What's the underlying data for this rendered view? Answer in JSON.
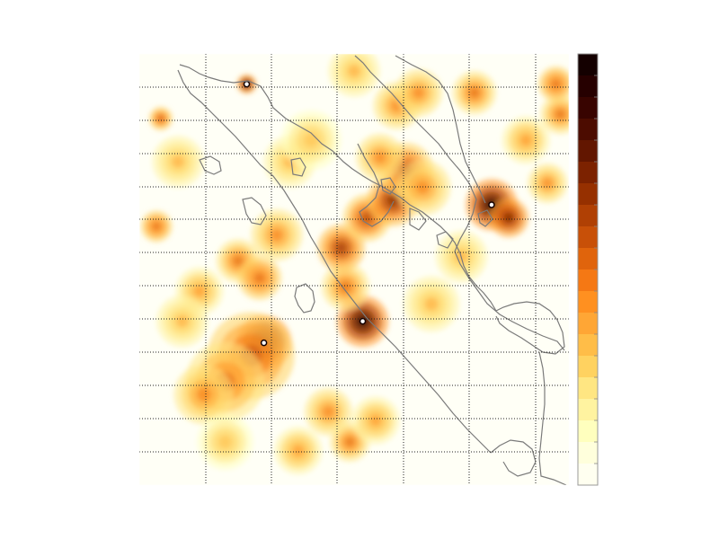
{
  "map": {
    "type": "heatmap",
    "grid": true,
    "grid_style": "dotted",
    "legend_placement": "right",
    "colorbar": {
      "colors": [
        "#fffff0",
        "#ffffdc",
        "#ffffbe",
        "#fff3a0",
        "#ffe682",
        "#ffd260",
        "#ffbd48",
        "#ffa635",
        "#ff9020",
        "#f57814",
        "#e0640c",
        "#c85008",
        "#b04004",
        "#963000",
        "#7c2200",
        "#621600",
        "#4c0c00",
        "#380400",
        "#260000",
        "#140000"
      ]
    },
    "coastline_color": "#7a7a7a",
    "hotspots": [
      {
        "lon": 0.29,
        "lat": 0.67,
        "intensity": 1.0,
        "radius": 1.4
      },
      {
        "lon": 0.26,
        "lat": 0.7,
        "intensity": 0.6,
        "radius": 2.2
      },
      {
        "lon": 0.2,
        "lat": 0.76,
        "intensity": 0.5,
        "radius": 2.0
      },
      {
        "lon": 0.15,
        "lat": 0.79,
        "intensity": 0.45,
        "radius": 1.5
      },
      {
        "lon": 0.52,
        "lat": 0.62,
        "intensity": 1.0,
        "radius": 1.3
      },
      {
        "lon": 0.48,
        "lat": 0.54,
        "intensity": 0.5,
        "radius": 1.2
      },
      {
        "lon": 0.49,
        "lat": 0.9,
        "intensity": 0.5,
        "radius": 1.0
      },
      {
        "lon": 0.47,
        "lat": 0.45,
        "intensity": 0.7,
        "radius": 1.2
      },
      {
        "lon": 0.53,
        "lat": 0.38,
        "intensity": 0.65,
        "radius": 1.2
      },
      {
        "lon": 0.59,
        "lat": 0.34,
        "intensity": 0.75,
        "radius": 1.3
      },
      {
        "lon": 0.62,
        "lat": 0.27,
        "intensity": 0.65,
        "radius": 1.4
      },
      {
        "lon": 0.66,
        "lat": 0.31,
        "intensity": 0.45,
        "radius": 1.4
      },
      {
        "lon": 0.56,
        "lat": 0.24,
        "intensity": 0.45,
        "radius": 1.2
      },
      {
        "lon": 0.82,
        "lat": 0.35,
        "intensity": 1.0,
        "radius": 1.3
      },
      {
        "lon": 0.86,
        "lat": 0.38,
        "intensity": 0.8,
        "radius": 1.0
      },
      {
        "lon": 0.23,
        "lat": 0.48,
        "intensity": 0.5,
        "radius": 1.1
      },
      {
        "lon": 0.28,
        "lat": 0.52,
        "intensity": 0.55,
        "radius": 1.1
      },
      {
        "lon": 0.32,
        "lat": 0.42,
        "intensity": 0.45,
        "radius": 1.3
      },
      {
        "lon": 0.04,
        "lat": 0.4,
        "intensity": 0.55,
        "radius": 0.8
      },
      {
        "lon": 0.05,
        "lat": 0.15,
        "intensity": 0.6,
        "radius": 0.6
      },
      {
        "lon": 0.25,
        "lat": 0.07,
        "intensity": 0.9,
        "radius": 0.5
      },
      {
        "lon": 0.6,
        "lat": 0.12,
        "intensity": 0.45,
        "radius": 1.2
      },
      {
        "lon": 0.65,
        "lat": 0.09,
        "intensity": 0.45,
        "radius": 1.2
      },
      {
        "lon": 0.78,
        "lat": 0.09,
        "intensity": 0.5,
        "radius": 1.1
      },
      {
        "lon": 0.9,
        "lat": 0.2,
        "intensity": 0.4,
        "radius": 1.2
      },
      {
        "lon": 0.98,
        "lat": 0.14,
        "intensity": 0.5,
        "radius": 1.0
      },
      {
        "lon": 0.09,
        "lat": 0.25,
        "intensity": 0.35,
        "radius": 1.3
      },
      {
        "lon": 0.35,
        "lat": 0.25,
        "intensity": 0.35,
        "radius": 1.3
      },
      {
        "lon": 0.44,
        "lat": 0.83,
        "intensity": 0.45,
        "radius": 1.2
      },
      {
        "lon": 0.55,
        "lat": 0.85,
        "intensity": 0.4,
        "radius": 1.2
      },
      {
        "lon": 0.14,
        "lat": 0.55,
        "intensity": 0.4,
        "radius": 1.2
      },
      {
        "lon": 0.1,
        "lat": 0.62,
        "intensity": 0.35,
        "radius": 1.3
      },
      {
        "lon": 0.68,
        "lat": 0.58,
        "intensity": 0.35,
        "radius": 1.4
      },
      {
        "lon": 0.75,
        "lat": 0.47,
        "intensity": 0.35,
        "radius": 1.3
      },
      {
        "lon": 0.95,
        "lat": 0.3,
        "intensity": 0.45,
        "radius": 1.0
      },
      {
        "lon": 0.97,
        "lat": 0.07,
        "intensity": 0.55,
        "radius": 0.9
      },
      {
        "lon": 0.5,
        "lat": 0.04,
        "intensity": 0.35,
        "radius": 1.3
      },
      {
        "lon": 0.4,
        "lat": 0.2,
        "intensity": 0.3,
        "radius": 1.5
      },
      {
        "lon": 0.37,
        "lat": 0.92,
        "intensity": 0.4,
        "radius": 1.2
      },
      {
        "lon": 0.2,
        "lat": 0.9,
        "intensity": 0.3,
        "radius": 1.4
      }
    ]
  }
}
